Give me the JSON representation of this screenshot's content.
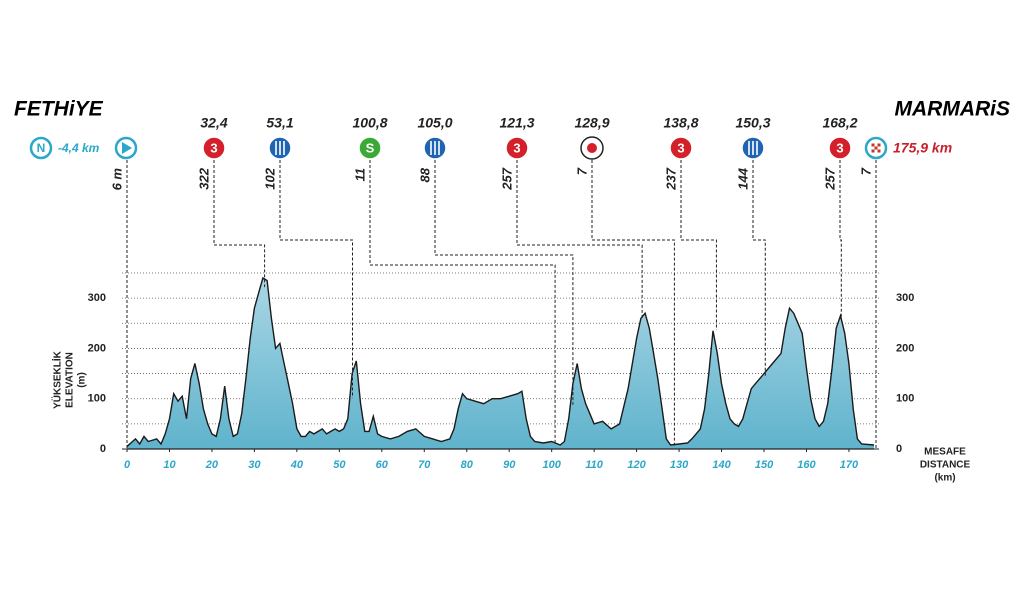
{
  "chart_data": {
    "type": "profile",
    "start_name": "FETHiYE",
    "finish_name": "MARMARiS",
    "neutral_icon": "N",
    "neutral_distance": "-4,4 km",
    "start_altitude": "6 m",
    "finish_distance": "175,9 km",
    "finish_altitude": 7,
    "y_label": [
      "YÜKSEKLİK",
      "ELEVATION",
      "(m)"
    ],
    "x_label": [
      "MESAFE",
      "DISTANCE",
      "(km)"
    ],
    "color": "#8fc9dc",
    "line_color": "#1b1b1b",
    "accent": "#2aa7c9",
    "xlim": [
      0,
      175.9
    ],
    "ylim": [
      0,
      350
    ],
    "xticks": [
      0,
      10,
      20,
      30,
      40,
      50,
      60,
      70,
      80,
      90,
      100,
      110,
      120,
      130,
      140,
      150,
      160,
      170
    ],
    "yticks": [
      0,
      100,
      200,
      300
    ],
    "minor_yticks": [
      50,
      150,
      250,
      350
    ],
    "grid": true,
    "markers": [
      {
        "km": {
          "value": 32.4,
          "label": "32,4"
        },
        "kind": "climb",
        "icon": "3",
        "altitude": 322
      },
      {
        "km": {
          "value": 53.1,
          "label": "53,1"
        },
        "kind": "feed",
        "altitude": 102
      },
      {
        "km": {
          "value": 100.8,
          "label": "100,8"
        },
        "kind": "sprint",
        "icon": "S",
        "altitude": 11
      },
      {
        "km": {
          "value": 105.0,
          "label": "105,0"
        },
        "kind": "feed",
        "altitude": 88
      },
      {
        "km": {
          "value": 121.3,
          "label": "121,3"
        },
        "kind": "climb",
        "icon": "3",
        "altitude": 257
      },
      {
        "km": {
          "value": 128.9,
          "label": "128,9"
        },
        "kind": "bonus",
        "altitude": 7
      },
      {
        "km": {
          "value": 138.8,
          "label": "138,8"
        },
        "kind": "climb",
        "icon": "3",
        "altitude": 237
      },
      {
        "km": {
          "value": 150.3,
          "label": "150,3"
        },
        "kind": "feed",
        "altitude": 144
      },
      {
        "km": {
          "value": 168.2,
          "label": "168,2"
        },
        "kind": "climb",
        "icon": "3",
        "altitude": 257
      }
    ],
    "profile": {
      "km": [
        0,
        2,
        3,
        4,
        5,
        7,
        8,
        9,
        10,
        11,
        12,
        13,
        14,
        15,
        16,
        17,
        18,
        19,
        20,
        21,
        22,
        23,
        24,
        25,
        26,
        27,
        28,
        29,
        30,
        31,
        32,
        33,
        34,
        35,
        36,
        37,
        38,
        39,
        40,
        41,
        42,
        43,
        44,
        45,
        46,
        47,
        48,
        49,
        50,
        51,
        52,
        53,
        54,
        55,
        56,
        57,
        58,
        59,
        60,
        62,
        64,
        66,
        68,
        70,
        72,
        74,
        76,
        77,
        78,
        79,
        80,
        82,
        84,
        86,
        88,
        90,
        92,
        93,
        94,
        95,
        96,
        98,
        100,
        102,
        103,
        104,
        105,
        106,
        107,
        108,
        109,
        110,
        112,
        114,
        116,
        118,
        120,
        121,
        122,
        123,
        124,
        125,
        126,
        127,
        128,
        130,
        132,
        133,
        134,
        135,
        136,
        137,
        138,
        139,
        140,
        141,
        142,
        143,
        144,
        145,
        146,
        147,
        148,
        150,
        152,
        154,
        155,
        156,
        157,
        158,
        159,
        160,
        161,
        162,
        163,
        164,
        165,
        166,
        167,
        168,
        169,
        170,
        171,
        172,
        173,
        175.9
      ],
      "elevation": [
        5,
        20,
        10,
        25,
        15,
        20,
        10,
        30,
        60,
        110,
        95,
        105,
        60,
        140,
        170,
        130,
        80,
        50,
        30,
        25,
        60,
        125,
        60,
        25,
        30,
        70,
        140,
        220,
        280,
        310,
        340,
        335,
        260,
        200,
        210,
        170,
        130,
        90,
        40,
        25,
        25,
        35,
        30,
        35,
        40,
        30,
        35,
        40,
        35,
        40,
        60,
        150,
        175,
        90,
        35,
        35,
        65,
        30,
        25,
        20,
        25,
        35,
        40,
        25,
        20,
        15,
        20,
        40,
        80,
        110,
        100,
        95,
        90,
        100,
        100,
        105,
        110,
        115,
        60,
        25,
        15,
        12,
        15,
        8,
        15,
        60,
        130,
        170,
        120,
        90,
        70,
        50,
        55,
        40,
        50,
        120,
        220,
        260,
        270,
        240,
        190,
        140,
        80,
        20,
        8,
        10,
        12,
        20,
        30,
        40,
        80,
        150,
        235,
        190,
        130,
        90,
        60,
        50,
        45,
        60,
        90,
        120,
        130,
        150,
        170,
        190,
        240,
        280,
        270,
        250,
        230,
        160,
        100,
        60,
        45,
        55,
        90,
        160,
        240,
        265,
        230,
        170,
        80,
        20,
        10,
        8
      ]
    }
  }
}
